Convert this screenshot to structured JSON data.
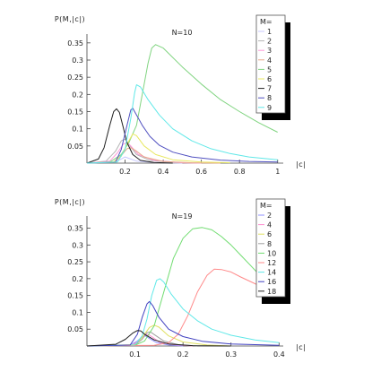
{
  "colors": {
    "M1": "#c8c8ff",
    "M2": "#b4b4b4",
    "M3": "#ff9ad8",
    "M4": "#e8a888",
    "M5": "#80d480",
    "M6": "#e8e860",
    "M7": "#202020",
    "M8": "#5050c0",
    "M9": "#60e8e8",
    "M10": "#70dc70",
    "M12": "#ff8a8a",
    "M14": "#60e8e8",
    "M16": "#4040c0",
    "M18": "#202020",
    "M2b": "#9090ff",
    "M4b": "#ff8ad0",
    "M6b": "#e0e060",
    "M8b": "#a0a0a0"
  },
  "chart_data": [
    {
      "type": "line",
      "note": "N=10",
      "ylabel": "P(M,|c|)",
      "xlabel": "|c|",
      "xlim": [
        0,
        1.02
      ],
      "ylim": [
        0,
        0.36
      ],
      "xticks": [
        "0.2",
        "0.4",
        "0.6",
        "0.8",
        "1"
      ],
      "xtick_values": [
        0.2,
        0.4,
        0.6,
        0.8,
        1.0
      ],
      "yticks": [
        "0.05",
        "0.1",
        "0.15",
        "0.2",
        "0.25",
        "0.3",
        "0.35"
      ],
      "ytick_values": [
        0.05,
        0.1,
        0.15,
        0.2,
        0.25,
        0.3,
        0.35
      ],
      "legend": {
        "title": "M=",
        "placement": "top-right",
        "entries": [
          "1",
          "2",
          "3",
          "4",
          "5",
          "6",
          "7",
          "8",
          "9"
        ]
      },
      "series": [
        {
          "name": "1",
          "color_key": "M1",
          "points": [
            [
              0.0,
              0
            ],
            [
              0.14,
              0.003
            ],
            [
              0.18,
              0.012
            ],
            [
              0.2,
              0.018
            ],
            [
              0.22,
              0.014
            ],
            [
              0.26,
              0.006
            ],
            [
              0.35,
              0.002
            ],
            [
              0.5,
              0
            ]
          ]
        },
        {
          "name": "2",
          "color_key": "M2",
          "points": [
            [
              0.0,
              0
            ],
            [
              0.1,
              0.006
            ],
            [
              0.15,
              0.035
            ],
            [
              0.18,
              0.065
            ],
            [
              0.2,
              0.07
            ],
            [
              0.22,
              0.055
            ],
            [
              0.26,
              0.025
            ],
            [
              0.33,
              0.008
            ],
            [
              0.45,
              0.002
            ],
            [
              0.6,
              0
            ]
          ]
        },
        {
          "name": "3",
          "color_key": "M3",
          "points": [
            [
              0.0,
              0
            ],
            [
              0.12,
              0.006
            ],
            [
              0.16,
              0.03
            ],
            [
              0.19,
              0.055
            ],
            [
              0.21,
              0.06
            ],
            [
              0.23,
              0.05
            ],
            [
              0.27,
              0.025
            ],
            [
              0.35,
              0.008
            ],
            [
              0.5,
              0.001
            ],
            [
              0.6,
              0
            ]
          ]
        },
        {
          "name": "4",
          "color_key": "M4",
          "points": [
            [
              0.0,
              0
            ],
            [
              0.14,
              0.004
            ],
            [
              0.18,
              0.022
            ],
            [
              0.21,
              0.042
            ],
            [
              0.23,
              0.045
            ],
            [
              0.26,
              0.035
            ],
            [
              0.3,
              0.018
            ],
            [
              0.4,
              0.005
            ],
            [
              0.55,
              0.001
            ],
            [
              0.7,
              0
            ]
          ]
        },
        {
          "name": "5",
          "color_key": "M5",
          "points": [
            [
              0.0,
              0
            ],
            [
              0.12,
              0.003
            ],
            [
              0.18,
              0.025
            ],
            [
              0.22,
              0.06
            ],
            [
              0.26,
              0.11
            ],
            [
              0.29,
              0.2
            ],
            [
              0.32,
              0.29
            ],
            [
              0.34,
              0.335
            ],
            [
              0.36,
              0.345
            ],
            [
              0.4,
              0.335
            ],
            [
              0.5,
              0.28
            ],
            [
              0.6,
              0.23
            ],
            [
              0.7,
              0.185
            ],
            [
              0.8,
              0.15
            ],
            [
              0.9,
              0.118
            ],
            [
              1.0,
              0.09
            ]
          ]
        },
        {
          "name": "6",
          "color_key": "M6",
          "points": [
            [
              0.0,
              0
            ],
            [
              0.14,
              0.003
            ],
            [
              0.18,
              0.02
            ],
            [
              0.21,
              0.055
            ],
            [
              0.24,
              0.085
            ],
            [
              0.26,
              0.08
            ],
            [
              0.3,
              0.05
            ],
            [
              0.36,
              0.025
            ],
            [
              0.45,
              0.01
            ],
            [
              0.6,
              0.003
            ],
            [
              0.75,
              0.001
            ]
          ]
        },
        {
          "name": "7",
          "color_key": "M7",
          "points": [
            [
              0.0,
              0
            ],
            [
              0.06,
              0.012
            ],
            [
              0.09,
              0.045
            ],
            [
              0.12,
              0.11
            ],
            [
              0.14,
              0.15
            ],
            [
              0.155,
              0.158
            ],
            [
              0.17,
              0.148
            ],
            [
              0.19,
              0.105
            ],
            [
              0.21,
              0.06
            ],
            [
              0.24,
              0.025
            ],
            [
              0.28,
              0.008
            ],
            [
              0.35,
              0.002
            ],
            [
              0.45,
              0
            ]
          ]
        },
        {
          "name": "8",
          "color_key": "M8",
          "points": [
            [
              0.0,
              0
            ],
            [
              0.15,
              0.003
            ],
            [
              0.18,
              0.04
            ],
            [
              0.21,
              0.11
            ],
            [
              0.23,
              0.155
            ],
            [
              0.24,
              0.16
            ],
            [
              0.26,
              0.14
            ],
            [
              0.29,
              0.11
            ],
            [
              0.33,
              0.078
            ],
            [
              0.38,
              0.052
            ],
            [
              0.45,
              0.032
            ],
            [
              0.55,
              0.018
            ],
            [
              0.7,
              0.009
            ],
            [
              0.85,
              0.005
            ],
            [
              1.0,
              0.003
            ]
          ]
        },
        {
          "name": "9",
          "color_key": "M9",
          "points": [
            [
              0.0,
              0
            ],
            [
              0.16,
              0.003
            ],
            [
              0.2,
              0.04
            ],
            [
              0.23,
              0.13
            ],
            [
              0.25,
              0.205
            ],
            [
              0.26,
              0.228
            ],
            [
              0.28,
              0.222
            ],
            [
              0.32,
              0.185
            ],
            [
              0.38,
              0.14
            ],
            [
              0.45,
              0.1
            ],
            [
              0.55,
              0.065
            ],
            [
              0.65,
              0.042
            ],
            [
              0.75,
              0.028
            ],
            [
              0.85,
              0.018
            ],
            [
              1.0,
              0.01
            ]
          ]
        }
      ]
    },
    {
      "type": "line",
      "note": "N=19",
      "ylabel": "P(M,|c|)",
      "xlabel": "|c|",
      "xlim": [
        0,
        0.405
      ],
      "ylim": [
        0,
        0.37
      ],
      "xticks": [
        "0.1",
        "0.2",
        "0.3",
        "0.4"
      ],
      "xtick_values": [
        0.1,
        0.2,
        0.3,
        0.4
      ],
      "yticks": [
        "0.05",
        "0.1",
        "0.15",
        "0.2",
        "0.25",
        "0.3",
        "0.35"
      ],
      "ytick_values": [
        0.05,
        0.1,
        0.15,
        0.2,
        0.25,
        0.3,
        0.35
      ],
      "legend": {
        "title": "M=",
        "placement": "top-right",
        "entries": [
          "2",
          "4",
          "6",
          "8",
          "10",
          "12",
          "14",
          "16",
          "18"
        ]
      },
      "series": [
        {
          "name": "2",
          "color_key": "M2b",
          "points": [
            [
              0.0,
              0
            ],
            [
              0.09,
              0.003
            ],
            [
              0.105,
              0.015
            ],
            [
              0.115,
              0.028
            ],
            [
              0.122,
              0.03
            ],
            [
              0.13,
              0.022
            ],
            [
              0.145,
              0.01
            ],
            [
              0.17,
              0.003
            ],
            [
              0.2,
              0
            ]
          ]
        },
        {
          "name": "4",
          "color_key": "M4b",
          "points": [
            [
              0.0,
              0
            ],
            [
              0.095,
              0.003
            ],
            [
              0.11,
              0.018
            ],
            [
              0.12,
              0.032
            ],
            [
              0.127,
              0.035
            ],
            [
              0.135,
              0.028
            ],
            [
              0.15,
              0.012
            ],
            [
              0.18,
              0.004
            ],
            [
              0.22,
              0
            ]
          ]
        },
        {
          "name": "6",
          "color_key": "M6b",
          "points": [
            [
              0.0,
              0
            ],
            [
              0.1,
              0.004
            ],
            [
              0.115,
              0.025
            ],
            [
              0.13,
              0.055
            ],
            [
              0.14,
              0.062
            ],
            [
              0.15,
              0.056
            ],
            [
              0.17,
              0.03
            ],
            [
              0.2,
              0.012
            ],
            [
              0.25,
              0.003
            ],
            [
              0.3,
              0
            ]
          ]
        },
        {
          "name": "8",
          "color_key": "M8b",
          "points": [
            [
              0.0,
              0
            ],
            [
              0.1,
              0.003
            ],
            [
              0.115,
              0.02
            ],
            [
              0.125,
              0.04
            ],
            [
              0.132,
              0.042
            ],
            [
              0.14,
              0.034
            ],
            [
              0.16,
              0.015
            ],
            [
              0.19,
              0.004
            ],
            [
              0.23,
              0
            ]
          ]
        },
        {
          "name": "10",
          "color_key": "M10",
          "points": [
            [
              0.0,
              0
            ],
            [
              0.1,
              0.002
            ],
            [
              0.12,
              0.015
            ],
            [
              0.14,
              0.06
            ],
            [
              0.16,
              0.16
            ],
            [
              0.18,
              0.26
            ],
            [
              0.2,
              0.32
            ],
            [
              0.22,
              0.348
            ],
            [
              0.24,
              0.352
            ],
            [
              0.26,
              0.345
            ],
            [
              0.28,
              0.325
            ],
            [
              0.3,
              0.3
            ],
            [
              0.32,
              0.27
            ],
            [
              0.34,
              0.24
            ],
            [
              0.36,
              0.21
            ],
            [
              0.38,
              0.18
            ],
            [
              0.4,
              0.15
            ]
          ]
        },
        {
          "name": "12",
          "color_key": "M12",
          "points": [
            [
              0.0,
              0
            ],
            [
              0.14,
              0.002
            ],
            [
              0.17,
              0.01
            ],
            [
              0.19,
              0.035
            ],
            [
              0.21,
              0.09
            ],
            [
              0.23,
              0.16
            ],
            [
              0.25,
              0.21
            ],
            [
              0.265,
              0.228
            ],
            [
              0.28,
              0.227
            ],
            [
              0.3,
              0.22
            ],
            [
              0.32,
              0.205
            ],
            [
              0.35,
              0.185
            ],
            [
              0.38,
              0.165
            ],
            [
              0.4,
              0.155
            ]
          ]
        },
        {
          "name": "14",
          "color_key": "M14",
          "points": [
            [
              0.0,
              0
            ],
            [
              0.1,
              0.003
            ],
            [
              0.115,
              0.03
            ],
            [
              0.125,
              0.08
            ],
            [
              0.135,
              0.15
            ],
            [
              0.145,
              0.195
            ],
            [
              0.152,
              0.2
            ],
            [
              0.16,
              0.19
            ],
            [
              0.175,
              0.155
            ],
            [
              0.2,
              0.11
            ],
            [
              0.23,
              0.075
            ],
            [
              0.26,
              0.05
            ],
            [
              0.3,
              0.032
            ],
            [
              0.35,
              0.018
            ],
            [
              0.4,
              0.01
            ]
          ]
        },
        {
          "name": "16",
          "color_key": "M16",
          "points": [
            [
              0.0,
              0
            ],
            [
              0.09,
              0.003
            ],
            [
              0.105,
              0.035
            ],
            [
              0.115,
              0.085
            ],
            [
              0.125,
              0.125
            ],
            [
              0.13,
              0.132
            ],
            [
              0.137,
              0.12
            ],
            [
              0.15,
              0.085
            ],
            [
              0.17,
              0.05
            ],
            [
              0.2,
              0.028
            ],
            [
              0.24,
              0.014
            ],
            [
              0.3,
              0.006
            ],
            [
              0.4,
              0.002
            ]
          ]
        },
        {
          "name": "18",
          "color_key": "M18",
          "points": [
            [
              0.0,
              0
            ],
            [
              0.06,
              0.005
            ],
            [
              0.08,
              0.02
            ],
            [
              0.095,
              0.038
            ],
            [
              0.105,
              0.046
            ],
            [
              0.112,
              0.045
            ],
            [
              0.12,
              0.035
            ],
            [
              0.14,
              0.018
            ],
            [
              0.17,
              0.006
            ],
            [
              0.22,
              0.001
            ],
            [
              0.3,
              0
            ]
          ]
        }
      ]
    }
  ]
}
